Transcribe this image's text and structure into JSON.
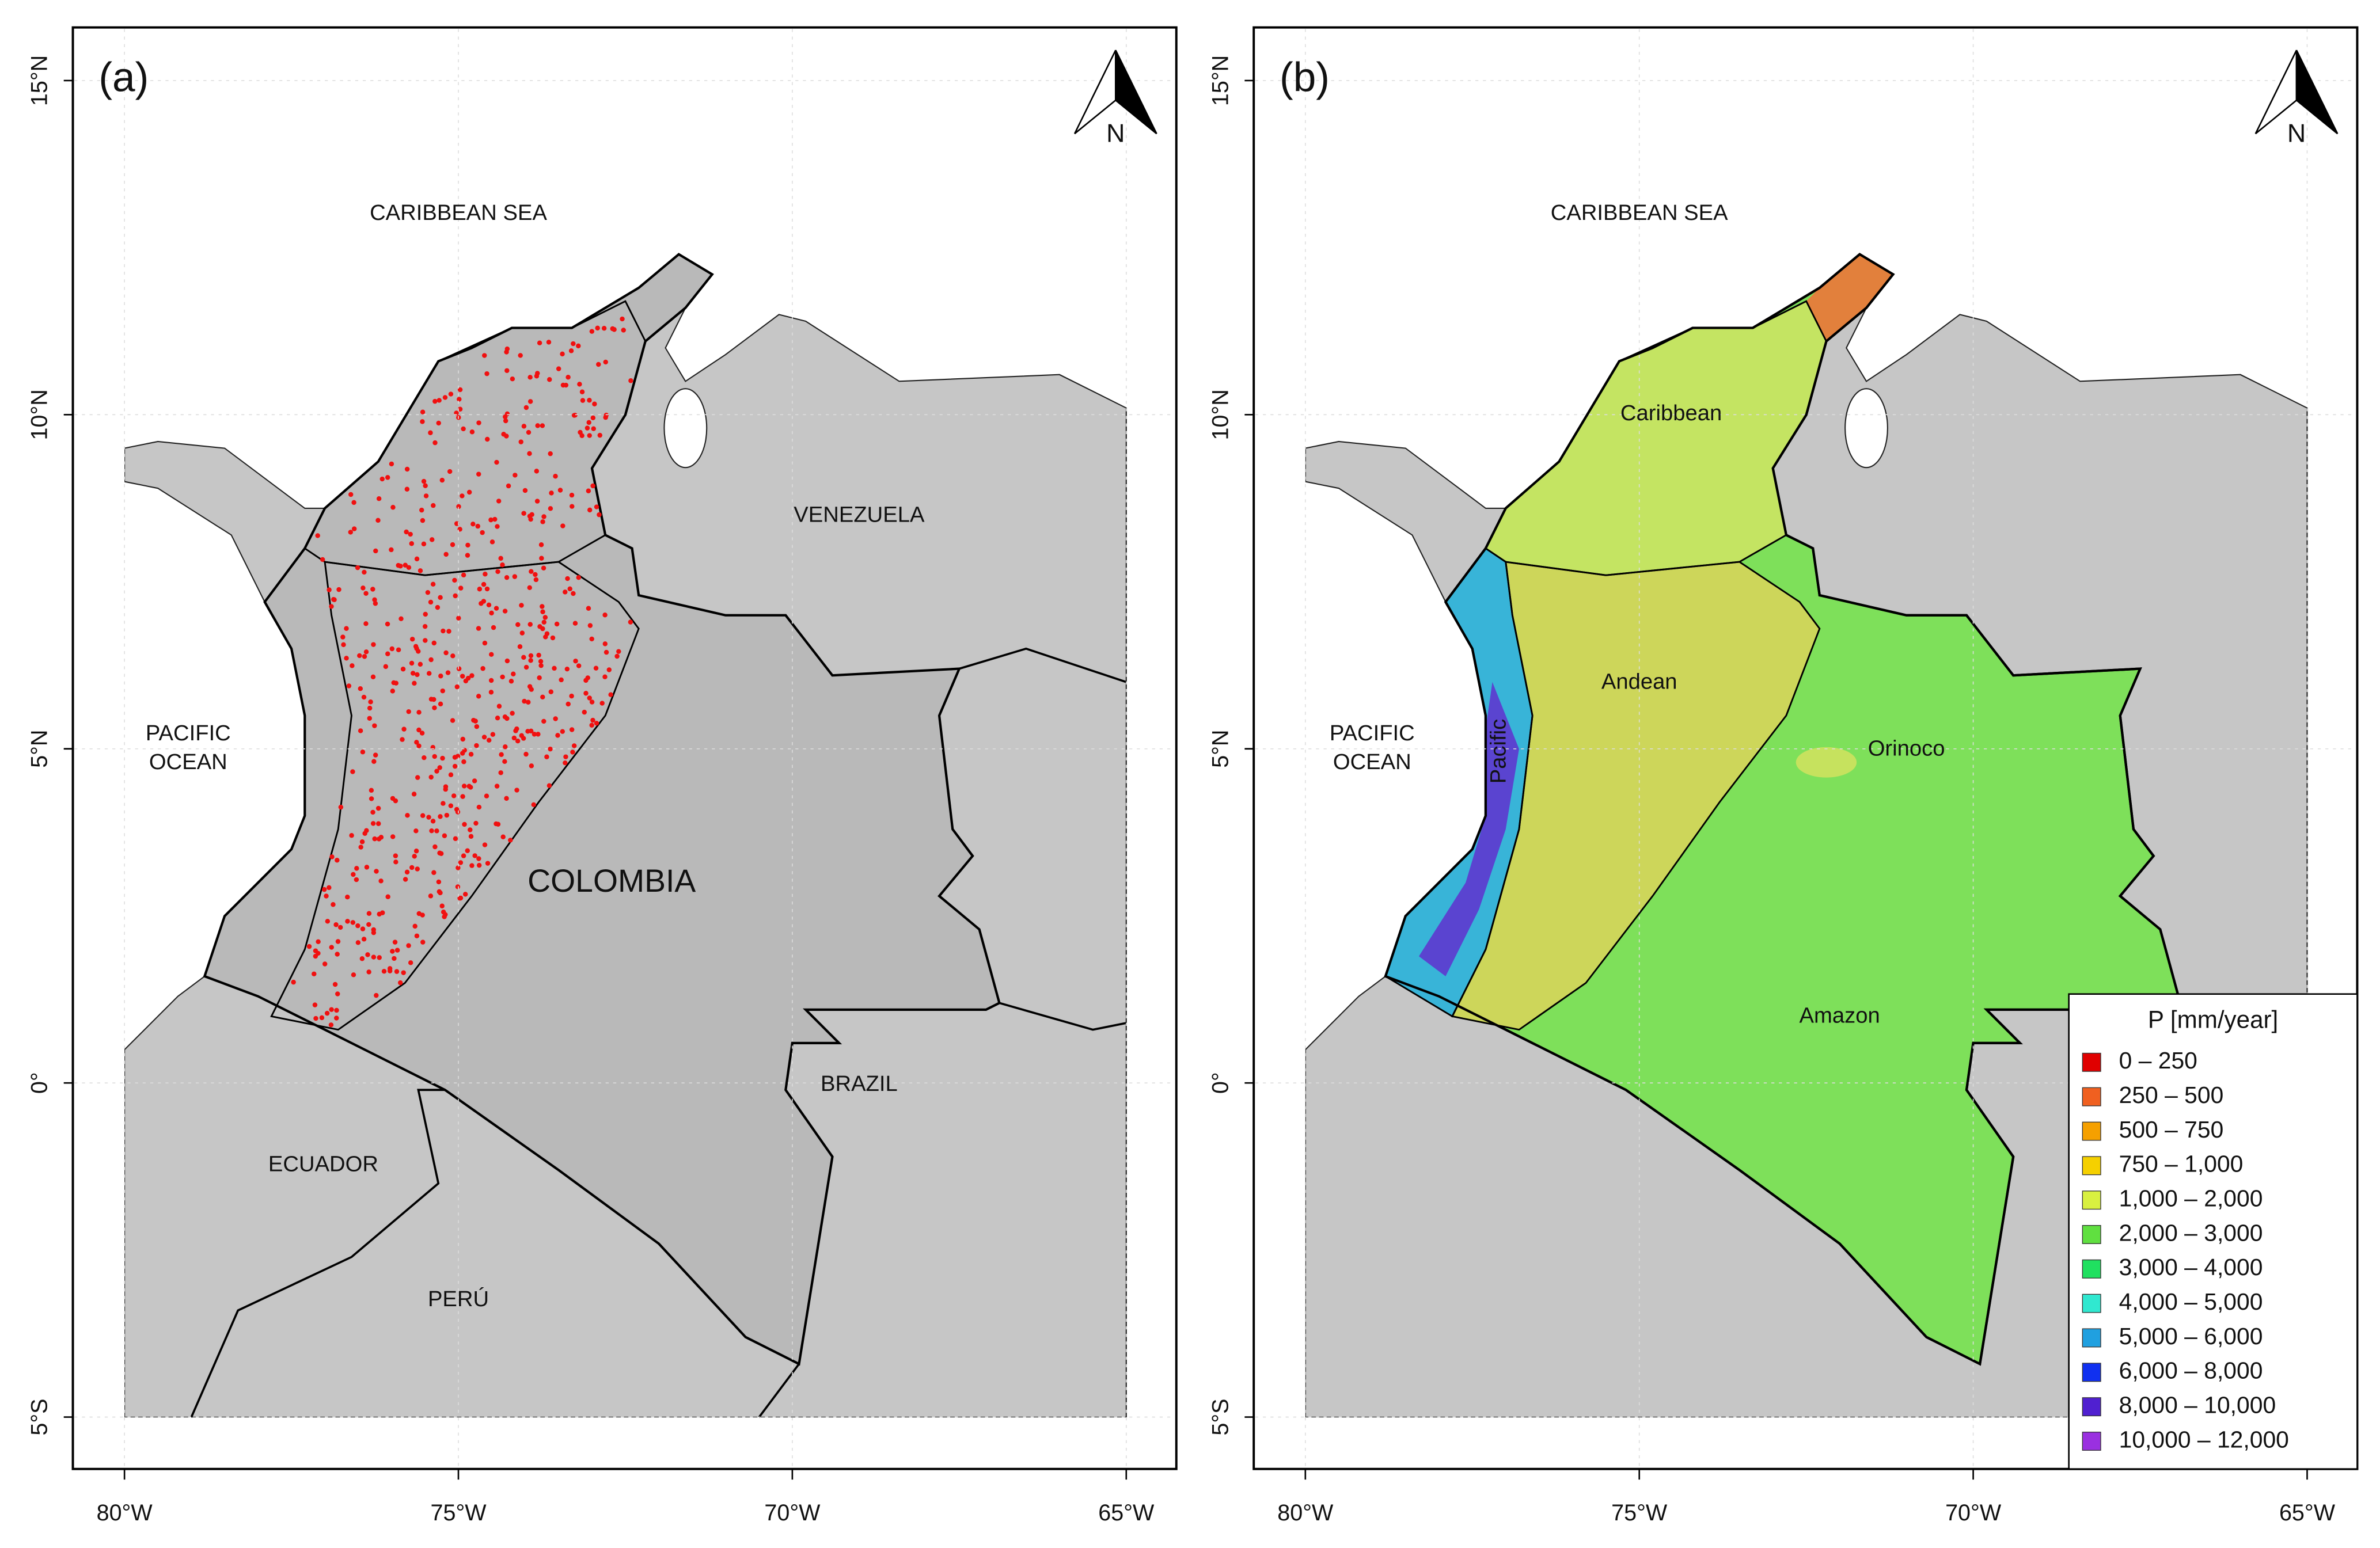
{
  "panels": [
    {
      "label": "(a)",
      "places": [
        "CARIBBEAN SEA",
        "VENEZUELA",
        "PACIFIC",
        "OCEAN",
        "COLOMBIA",
        "BRAZIL",
        "ECUADOR",
        "PERÚ"
      ]
    },
    {
      "label": "(b)",
      "places": [
        "CARIBBEAN SEA",
        "PACIFIC",
        "OCEAN",
        "Caribbean",
        "Andean",
        "Orinoco",
        "Pacific",
        "Amazon"
      ]
    }
  ],
  "north": "N",
  "lat_ticks": [
    "15°N",
    "10°N",
    "5°N",
    "0°",
    "5°S"
  ],
  "lon_ticks": [
    "80°W",
    "75°W",
    "70°W",
    "65°W"
  ],
  "legend": {
    "title": "P [mm/year]",
    "items": [
      {
        "label": "0 – 250",
        "color": "#e00000"
      },
      {
        "label": "250 – 500",
        "color": "#f06020"
      },
      {
        "label": "500 – 750",
        "color": "#f5a000"
      },
      {
        "label": "750 – 1,000",
        "color": "#f5d000"
      },
      {
        "label": "1,000 – 2,000",
        "color": "#d8f040"
      },
      {
        "label": "2,000 – 3,000",
        "color": "#60e040"
      },
      {
        "label": "3,000 – 4,000",
        "color": "#20e060"
      },
      {
        "label": "4,000 – 5,000",
        "color": "#30e8d0"
      },
      {
        "label": "5,000 – 6,000",
        "color": "#20a0e0"
      },
      {
        "label": "6,000 – 8,000",
        "color": "#1030f0"
      },
      {
        "label": "8,000 – 10,000",
        "color": "#5020d0"
      },
      {
        "label": "10,000 – 12,000",
        "color": "#9a30e0"
      }
    ]
  }
}
